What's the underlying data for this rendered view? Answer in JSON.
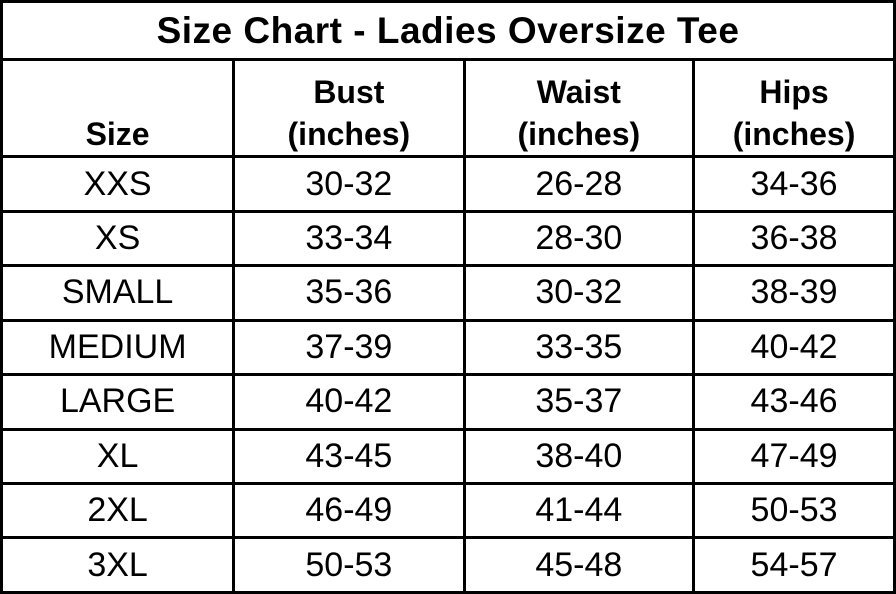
{
  "page": {
    "background": "#ffffff",
    "border_color": "#000000",
    "text_color": "#000000"
  },
  "chart_data": {
    "type": "table",
    "title": "Size Chart - Ladies Oversize Tee",
    "columns": [
      "Size",
      "Bust (inches)",
      "Waist (inches)",
      "Hips (inches)"
    ],
    "rows": [
      [
        "XXS",
        "30-32",
        "26-28",
        "34-36"
      ],
      [
        "XS",
        "33-34",
        "28-30",
        "36-38"
      ],
      [
        "SMALL",
        "35-36",
        "30-32",
        "38-39"
      ],
      [
        "MEDIUM",
        "37-39",
        "33-35",
        "40-42"
      ],
      [
        "LARGE",
        "40-42",
        "35-37",
        "43-46"
      ],
      [
        "XL",
        "43-45",
        "38-40",
        "47-49"
      ],
      [
        "2XL",
        "46-49",
        "41-44",
        "50-53"
      ],
      [
        "3XL",
        "50-53",
        "45-48",
        "54-57"
      ]
    ]
  },
  "table": {
    "title": "Size Chart - Ladies Oversize Tee",
    "headers": {
      "size": {
        "name": "Size",
        "unit": ""
      },
      "bust": {
        "name": "Bust",
        "unit": "(inches)"
      },
      "waist": {
        "name": "Waist",
        "unit": "(inches)"
      },
      "hips": {
        "name": "Hips",
        "unit": "(inches)"
      }
    },
    "rows": [
      {
        "size": "XXS",
        "bust": "30-32",
        "waist": "26-28",
        "hips": "34-36"
      },
      {
        "size": "XS",
        "bust": "33-34",
        "waist": "28-30",
        "hips": "36-38"
      },
      {
        "size": "SMALL",
        "bust": "35-36",
        "waist": "30-32",
        "hips": "38-39"
      },
      {
        "size": "MEDIUM",
        "bust": "37-39",
        "waist": "33-35",
        "hips": "40-42"
      },
      {
        "size": "LARGE",
        "bust": "40-42",
        "waist": "35-37",
        "hips": "43-46"
      },
      {
        "size": "XL",
        "bust": "43-45",
        "waist": "38-40",
        "hips": "47-49"
      },
      {
        "size": "2XL",
        "bust": "46-49",
        "waist": "41-44",
        "hips": "50-53"
      },
      {
        "size": "3XL",
        "bust": "50-53",
        "waist": "45-48",
        "hips": "54-57"
      }
    ]
  }
}
